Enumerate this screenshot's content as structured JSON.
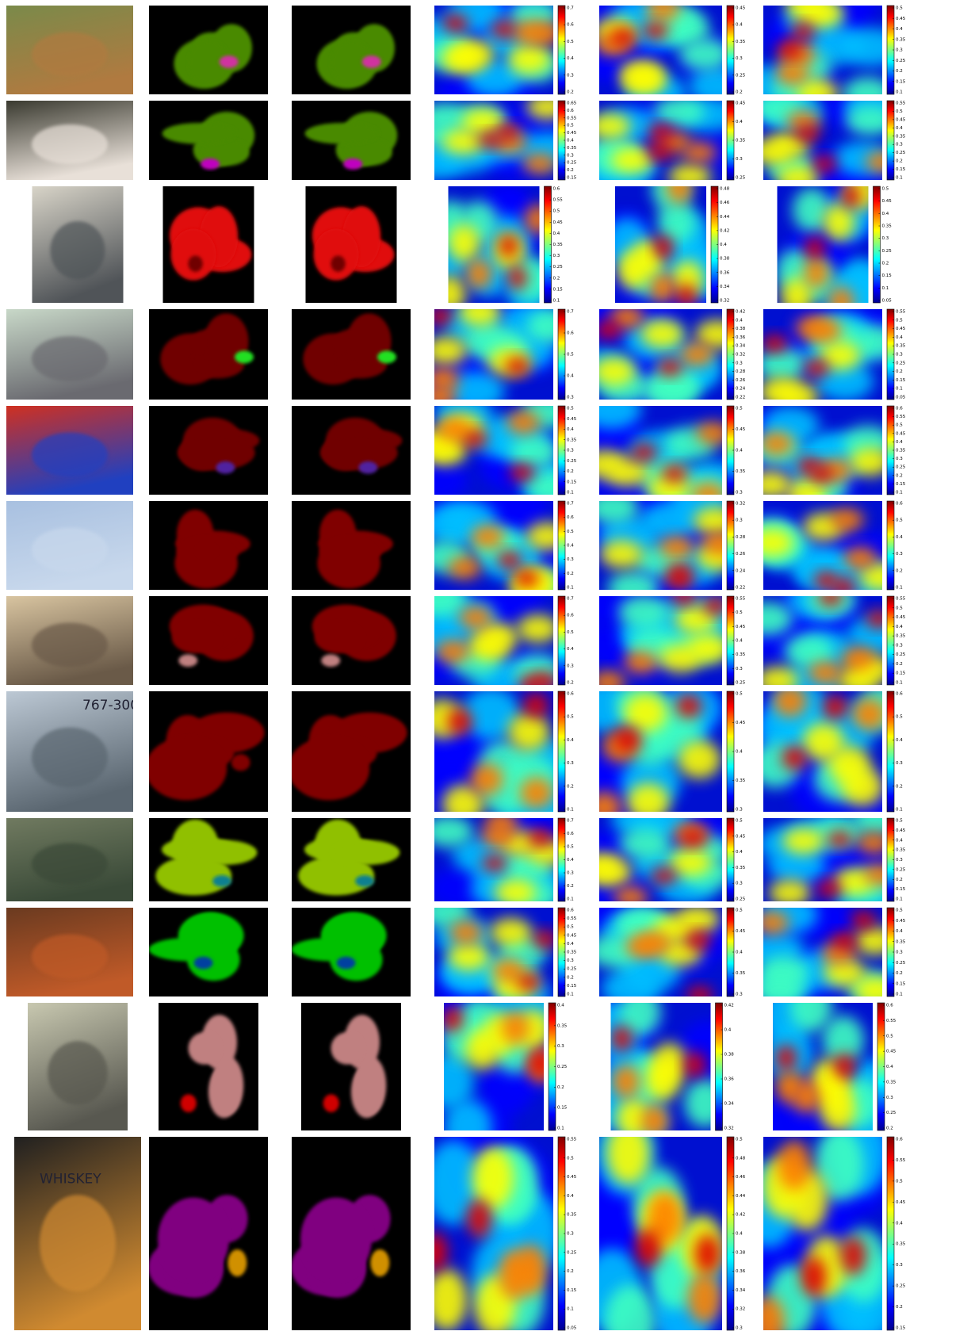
{
  "rows": [
    {
      "colorbars": [
        [
          0.7,
          0.6,
          0.5,
          0.4,
          0.3,
          0.2
        ],
        [
          0.45,
          0.4,
          0.35,
          0.3,
          0.25,
          0.2
        ],
        [
          0.5,
          0.45,
          0.4,
          0.35,
          0.3,
          0.25,
          0.2,
          0.15,
          0.1
        ]
      ]
    },
    {
      "colorbars": [
        [
          0.65,
          0.6,
          0.55,
          0.5,
          0.45,
          0.4,
          0.35,
          0.3,
          0.25,
          0.2,
          0.15
        ],
        [
          0.45,
          0.4,
          0.35,
          0.3,
          0.25
        ],
        [
          0.55,
          0.5,
          0.45,
          0.4,
          0.35,
          0.3,
          0.25,
          0.2,
          0.15,
          0.1
        ]
      ]
    },
    {
      "colorbars": [
        [
          0.6,
          0.55,
          0.5,
          0.45,
          0.4,
          0.35,
          0.3,
          0.25,
          0.2,
          0.15,
          0.1
        ],
        [
          0.48,
          0.46,
          0.44,
          0.42,
          0.4,
          0.38,
          0.36,
          0.34,
          0.32
        ],
        [
          0.5,
          0.45,
          0.4,
          0.35,
          0.3,
          0.25,
          0.2,
          0.15,
          0.1,
          0.05
        ]
      ]
    },
    {
      "colorbars": [
        [
          0.7,
          0.6,
          0.5,
          0.4,
          0.3
        ],
        [
          0.42,
          0.4,
          0.38,
          0.36,
          0.34,
          0.32,
          0.3,
          0.28,
          0.26,
          0.24,
          0.22
        ],
        [
          0.55,
          0.5,
          0.45,
          0.4,
          0.35,
          0.3,
          0.25,
          0.2,
          0.15,
          0.1,
          0.05
        ]
      ]
    },
    {
      "colorbars": [
        [
          0.5,
          0.45,
          0.4,
          0.35,
          0.3,
          0.25,
          0.2,
          0.15,
          0.1
        ],
        [
          0.5,
          0.45,
          0.4,
          0.35,
          0.3
        ],
        [
          0.6,
          0.55,
          0.5,
          0.45,
          0.4,
          0.35,
          0.3,
          0.25,
          0.2,
          0.15,
          0.1
        ]
      ]
    },
    {
      "colorbars": [
        [
          0.7,
          0.6,
          0.5,
          0.4,
          0.3,
          0.2,
          0.1
        ],
        [
          0.32,
          0.3,
          0.28,
          0.26,
          0.24,
          0.22
        ],
        [
          0.6,
          0.5,
          0.4,
          0.3,
          0.2,
          0.1
        ]
      ]
    },
    {
      "colorbars": [
        [
          0.7,
          0.6,
          0.5,
          0.4,
          0.3,
          0.2
        ],
        [
          0.55,
          0.5,
          0.45,
          0.4,
          0.35,
          0.3,
          0.25
        ],
        [
          0.55,
          0.5,
          0.45,
          0.4,
          0.35,
          0.3,
          0.25,
          0.2,
          0.15,
          0.1
        ]
      ]
    },
    {
      "photo_text": "767-300",
      "colorbars": [
        [
          0.6,
          0.5,
          0.4,
          0.3,
          0.2,
          0.1
        ],
        [
          0.5,
          0.45,
          0.4,
          0.35,
          0.3
        ],
        [
          0.6,
          0.5,
          0.4,
          0.3,
          0.2,
          0.1
        ]
      ]
    },
    {
      "colorbars": [
        [
          0.7,
          0.6,
          0.5,
          0.4,
          0.3,
          0.2,
          0.1
        ],
        [
          0.5,
          0.45,
          0.4,
          0.35,
          0.3,
          0.25
        ],
        [
          0.5,
          0.45,
          0.4,
          0.35,
          0.3,
          0.25,
          0.2,
          0.15,
          0.1
        ]
      ]
    },
    {
      "colorbars": [
        [
          0.6,
          0.55,
          0.5,
          0.45,
          0.4,
          0.35,
          0.3,
          0.25,
          0.2,
          0.15,
          0.1
        ],
        [
          0.5,
          0.45,
          0.4,
          0.35,
          0.3
        ],
        [
          0.5,
          0.45,
          0.4,
          0.35,
          0.3,
          0.25,
          0.2,
          0.15,
          0.1
        ]
      ]
    },
    {
      "colorbars": [
        [
          0.4,
          0.35,
          0.3,
          0.25,
          0.2,
          0.15,
          0.1
        ],
        [
          0.42,
          0.4,
          0.38,
          0.36,
          0.34,
          0.32
        ],
        [
          0.6,
          0.55,
          0.5,
          0.45,
          0.4,
          0.35,
          0.3,
          0.25,
          0.2
        ]
      ]
    },
    {
      "photo_text": "WHISKEY",
      "colorbars": [
        [
          0.55,
          0.5,
          0.45,
          0.4,
          0.35,
          0.3,
          0.25,
          0.2,
          0.15,
          0.1,
          0.05
        ],
        [
          0.5,
          0.48,
          0.46,
          0.44,
          0.42,
          0.4,
          0.38,
          0.36,
          0.34,
          0.32,
          0.3
        ],
        [
          0.6,
          0.55,
          0.5,
          0.45,
          0.4,
          0.35,
          0.3,
          0.25,
          0.2,
          0.15
        ]
      ]
    }
  ]
}
